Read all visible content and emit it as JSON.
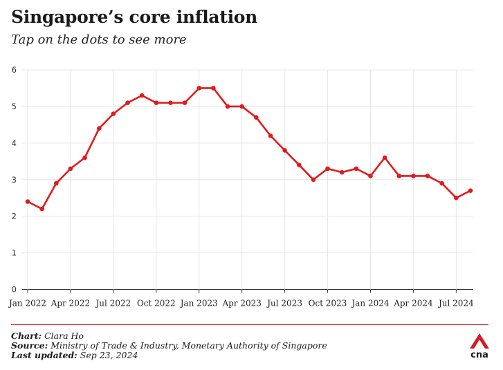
{
  "header": {
    "title": "Singapore’s core inflation",
    "subtitle": "Tap on the dots to see more"
  },
  "footer": {
    "chart_label": "Chart:",
    "chart_value": "Clara Ho",
    "source_label": "Source:",
    "source_value": "Ministry of Trade & Industry, Monetary Authority of Singapore",
    "updated_label": "Last updated:",
    "updated_value": "Sep 23, 2024"
  },
  "logo": {
    "text": "cna",
    "color": "#d71920"
  },
  "chart_data": {
    "type": "line",
    "x_months": [
      "2022-01",
      "2022-02",
      "2022-03",
      "2022-04",
      "2022-05",
      "2022-06",
      "2022-07",
      "2022-08",
      "2022-09",
      "2022-10",
      "2022-11",
      "2022-12",
      "2023-01",
      "2023-02",
      "2023-03",
      "2023-04",
      "2023-05",
      "2023-06",
      "2023-07",
      "2023-08",
      "2023-09",
      "2023-10",
      "2023-11",
      "2023-12",
      "2024-01",
      "2024-02",
      "2024-03",
      "2024-04",
      "2024-05",
      "2024-06",
      "2024-07",
      "2024-08"
    ],
    "values": [
      2.4,
      2.2,
      2.9,
      3.3,
      3.6,
      4.4,
      4.8,
      5.1,
      5.3,
      5.1,
      5.1,
      5.1,
      5.5,
      5.5,
      5.0,
      5.0,
      4.7,
      4.2,
      3.8,
      3.4,
      3.0,
      3.3,
      3.2,
      3.3,
      3.1,
      3.6,
      3.1,
      3.1,
      3.1,
      2.9,
      2.5,
      2.7
    ],
    "x_tick_labels": [
      "Jan 2022",
      "Apr 2022",
      "Jul 2022",
      "Oct 2022",
      "Jan 2023",
      "Apr 2023",
      "Jul 2023",
      "Oct 2023",
      "Jan 2024",
      "Apr 2024",
      "Jul 2024"
    ],
    "y_ticks": [
      "0",
      "1",
      "2",
      "3",
      "4",
      "5",
      "6"
    ],
    "ylim": [
      0,
      6
    ],
    "grid": true,
    "line_color": "#e3191b",
    "title": "",
    "xlabel": "",
    "ylabel": ""
  }
}
